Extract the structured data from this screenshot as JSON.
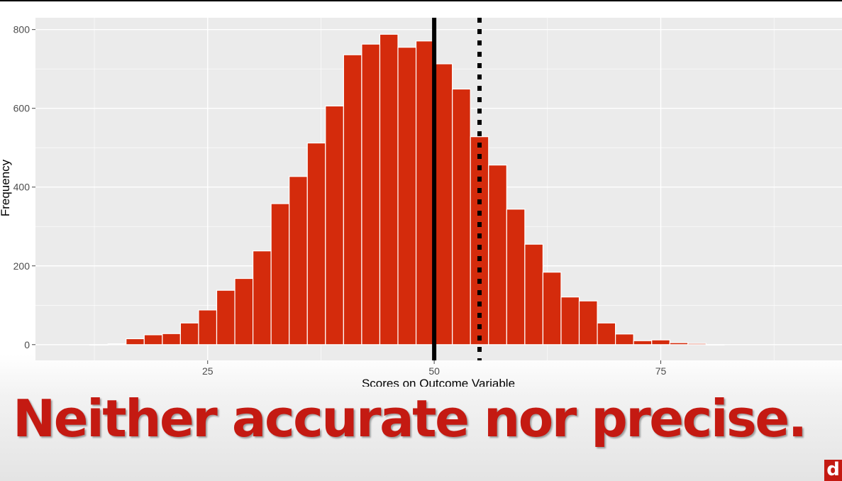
{
  "caption": "Neither accurate nor precise.",
  "logo_letter": "d",
  "colors": {
    "bar": "#d42b0c",
    "panel": "#ebebeb",
    "grid": "#ffffff",
    "caption": "#c41a12"
  },
  "chart_data": {
    "type": "bar",
    "subtype": "histogram",
    "xlabel": "Scores on Outcome Variable",
    "ylabel": "Frequency",
    "xlim": [
      6,
      95
    ],
    "ylim": [
      -40,
      830
    ],
    "x_ticks": [
      25,
      50,
      75
    ],
    "y_ticks": [
      0,
      200,
      400,
      600,
      800
    ],
    "grid": true,
    "bin_width": 2,
    "bins": [
      {
        "x": 13,
        "count": 0
      },
      {
        "x": 15,
        "count": 2
      },
      {
        "x": 17,
        "count": 15
      },
      {
        "x": 19,
        "count": 25
      },
      {
        "x": 21,
        "count": 28
      },
      {
        "x": 23,
        "count": 55
      },
      {
        "x": 25,
        "count": 88
      },
      {
        "x": 27,
        "count": 138
      },
      {
        "x": 29,
        "count": 168
      },
      {
        "x": 31,
        "count": 238
      },
      {
        "x": 33,
        "count": 358
      },
      {
        "x": 35,
        "count": 427
      },
      {
        "x": 37,
        "count": 512
      },
      {
        "x": 39,
        "count": 606
      },
      {
        "x": 41,
        "count": 736
      },
      {
        "x": 43,
        "count": 763
      },
      {
        "x": 45,
        "count": 788
      },
      {
        "x": 47,
        "count": 755
      },
      {
        "x": 49,
        "count": 771
      },
      {
        "x": 51,
        "count": 713
      },
      {
        "x": 53,
        "count": 649
      },
      {
        "x": 55,
        "count": 528
      },
      {
        "x": 57,
        "count": 456
      },
      {
        "x": 59,
        "count": 344
      },
      {
        "x": 61,
        "count": 255
      },
      {
        "x": 63,
        "count": 184
      },
      {
        "x": 65,
        "count": 121
      },
      {
        "x": 67,
        "count": 111
      },
      {
        "x": 69,
        "count": 55
      },
      {
        "x": 71,
        "count": 27
      },
      {
        "x": 73,
        "count": 10
      },
      {
        "x": 75,
        "count": 12
      },
      {
        "x": 77,
        "count": 5
      },
      {
        "x": 79,
        "count": 3
      },
      {
        "x": 81,
        "count": 0
      }
    ],
    "reference_lines": [
      {
        "x": 50,
        "style": "solid"
      },
      {
        "x": 55,
        "style": "dotted"
      }
    ]
  }
}
